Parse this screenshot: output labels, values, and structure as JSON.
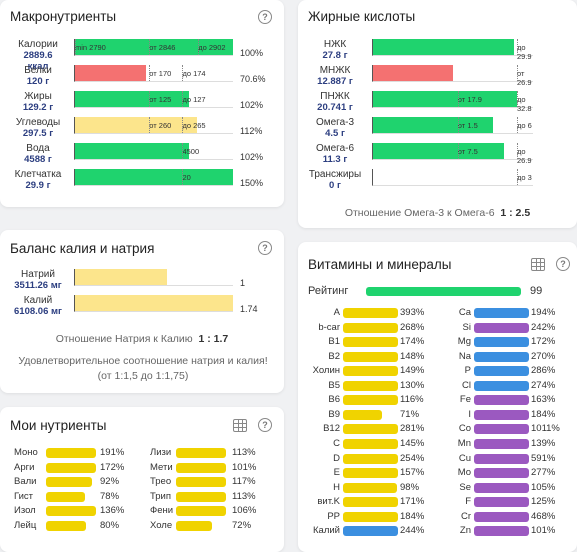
{
  "macro": {
    "title": "Макронутриенты",
    "rows": [
      {
        "name": "Калории",
        "val": "2889.6",
        "unit": "ккал",
        "pct": "100%",
        "fill": 1.0,
        "color": "green",
        "marks": [
          {
            "t": "min 2790",
            "p": 0.0
          },
          {
            "t": "от 2846",
            "p": 0.47
          },
          {
            "t": "до 2902",
            "p": 0.78
          }
        ]
      },
      {
        "name": "Белки",
        "val": "120 г",
        "pct": "70.6%",
        "fill": 0.45,
        "color": "red",
        "marks": [
          {
            "t": "от 170",
            "p": 0.47
          },
          {
            "t": "до 174",
            "p": 0.68
          }
        ]
      },
      {
        "name": "Жиры",
        "val": "129.2 г",
        "pct": "102%",
        "fill": 0.72,
        "color": "green",
        "marks": [
          {
            "t": "от 125",
            "p": 0.47
          },
          {
            "t": "до 127",
            "p": 0.68
          }
        ]
      },
      {
        "name": "Углеводы",
        "val": "297.5 г",
        "pct": "112%",
        "fill": 0.77,
        "color": "yellow",
        "marks": [
          {
            "t": "от 260",
            "p": 0.47
          },
          {
            "t": "до 265",
            "p": 0.68
          }
        ]
      },
      {
        "name": "Вода",
        "val": "4588 г",
        "pct": "102%",
        "fill": 0.72,
        "color": "green",
        "marks": [
          {
            "t": "4500",
            "p": 0.68
          }
        ]
      },
      {
        "name": "Клетчатка",
        "val": "29.9 г",
        "pct": "150%",
        "fill": 1.0,
        "color": "green",
        "marks": [
          {
            "t": "20",
            "p": 0.68
          }
        ]
      }
    ]
  },
  "fatty": {
    "title": "Жирные кислоты",
    "rows": [
      {
        "name": "НЖК",
        "val": "27.8 г",
        "fill": 0.88,
        "color": "green",
        "marks": [
          {
            "t": "до 29.9",
            "p": 0.9
          }
        ]
      },
      {
        "name": "МНЖК",
        "val": "12.887 г",
        "fill": 0.5,
        "color": "red",
        "marks": [
          {
            "t": "от 26.9",
            "p": 0.9
          }
        ]
      },
      {
        "name": "ПНЖК",
        "val": "20.741 г",
        "fill": 0.9,
        "color": "green",
        "marks": [
          {
            "t": "от 17.9",
            "p": 0.53
          },
          {
            "t": "до 32.8",
            "p": 0.9
          }
        ]
      },
      {
        "name": "Омега-3",
        "val": "4.5 г",
        "fill": 0.75,
        "color": "green",
        "marks": [
          {
            "t": "от 1.5",
            "p": 0.53
          },
          {
            "t": "до 6",
            "p": 0.9
          }
        ]
      },
      {
        "name": "Омега-6",
        "val": "11.3 г",
        "fill": 0.82,
        "color": "green",
        "marks": [
          {
            "t": "от 7.5",
            "p": 0.53
          },
          {
            "t": "до 26.9",
            "p": 0.9
          }
        ]
      },
      {
        "name": "Трансжиры",
        "val": "0 г",
        "fill": 0,
        "color": "green",
        "marks": [
          {
            "t": "до 3",
            "p": 0.9
          }
        ]
      }
    ],
    "ratio_label": "Отношение Омега-3 к Омега-6",
    "ratio_value": "1 : 2.5"
  },
  "balance": {
    "title": "Баланс калия и натрия",
    "rows": [
      {
        "name": "Натрий",
        "val": "3511.26 мг",
        "fill": 0.58,
        "num": "1"
      },
      {
        "name": "Калий",
        "val": "6108.06 мг",
        "fill": 1.0,
        "num": "1.74"
      }
    ],
    "ratio_label": "Отношение Натрия к Калию",
    "ratio_value": "1 : 1.7",
    "note": "Удовлетворительное соотношение натрия и калия! (от 1:1,5 до 1:1,75)"
  },
  "mine": {
    "title": "Мои нутриенты",
    "left": [
      {
        "name": "Моно",
        "pct": "191%",
        "fill": 1.0
      },
      {
        "name": "Арги",
        "pct": "172%",
        "fill": 1.0
      },
      {
        "name": "Вали",
        "pct": "92%",
        "fill": 0.92
      },
      {
        "name": "Гист",
        "pct": "78%",
        "fill": 0.78
      },
      {
        "name": "Изол",
        "pct": "136%",
        "fill": 1.0
      },
      {
        "name": "Лейц",
        "pct": "80%",
        "fill": 0.8
      }
    ],
    "right": [
      {
        "name": "Лизи",
        "pct": "113%",
        "fill": 1.0
      },
      {
        "name": "Мети",
        "pct": "101%",
        "fill": 1.0
      },
      {
        "name": "Трео",
        "pct": "117%",
        "fill": 1.0
      },
      {
        "name": "Трип",
        "pct": "113%",
        "fill": 1.0
      },
      {
        "name": "Фени",
        "pct": "106%",
        "fill": 1.0
      },
      {
        "name": "Холе",
        "pct": "72%",
        "fill": 0.72
      }
    ]
  },
  "vitamins": {
    "title": "Витамины и минералы",
    "rating_label": "Рейтинг",
    "rating_value": "99",
    "rating_fill": 0.99,
    "left": [
      {
        "name": "A",
        "pct": "393%",
        "fill": 1.0,
        "color": "gold"
      },
      {
        "name": "b-car",
        "pct": "268%",
        "fill": 1.0,
        "color": "gold"
      },
      {
        "name": "B1",
        "pct": "174%",
        "fill": 1.0,
        "color": "gold"
      },
      {
        "name": "B2",
        "pct": "148%",
        "fill": 1.0,
        "color": "gold"
      },
      {
        "name": "Холин",
        "pct": "149%",
        "fill": 1.0,
        "color": "gold"
      },
      {
        "name": "B5",
        "pct": "130%",
        "fill": 1.0,
        "color": "gold"
      },
      {
        "name": "B6",
        "pct": "116%",
        "fill": 1.0,
        "color": "gold"
      },
      {
        "name": "B9",
        "pct": "71%",
        "fill": 0.71,
        "color": "gold"
      },
      {
        "name": "B12",
        "pct": "281%",
        "fill": 1.0,
        "color": "gold"
      },
      {
        "name": "C",
        "pct": "145%",
        "fill": 1.0,
        "color": "gold"
      },
      {
        "name": "D",
        "pct": "254%",
        "fill": 1.0,
        "color": "gold"
      },
      {
        "name": "E",
        "pct": "157%",
        "fill": 1.0,
        "color": "gold"
      },
      {
        "name": "H",
        "pct": "98%",
        "fill": 0.98,
        "color": "gold"
      },
      {
        "name": "вит.K",
        "pct": "171%",
        "fill": 1.0,
        "color": "gold"
      },
      {
        "name": "PP",
        "pct": "184%",
        "fill": 1.0,
        "color": "gold"
      },
      {
        "name": "Калий",
        "pct": "244%",
        "fill": 1.0,
        "color": "blue"
      }
    ],
    "right": [
      {
        "name": "Ca",
        "pct": "194%",
        "fill": 1.0,
        "color": "blue"
      },
      {
        "name": "Si",
        "pct": "242%",
        "fill": 1.0,
        "color": "purple"
      },
      {
        "name": "Mg",
        "pct": "172%",
        "fill": 1.0,
        "color": "blue"
      },
      {
        "name": "Na",
        "pct": "270%",
        "fill": 1.0,
        "color": "blue"
      },
      {
        "name": "P",
        "pct": "286%",
        "fill": 1.0,
        "color": "blue"
      },
      {
        "name": "Cl",
        "pct": "274%",
        "fill": 1.0,
        "color": "blue"
      },
      {
        "name": "Fe",
        "pct": "163%",
        "fill": 1.0,
        "color": "purple"
      },
      {
        "name": "I",
        "pct": "184%",
        "fill": 1.0,
        "color": "purple"
      },
      {
        "name": "Co",
        "pct": "1011%",
        "fill": 1.0,
        "color": "purple"
      },
      {
        "name": "Mn",
        "pct": "139%",
        "fill": 1.0,
        "color": "purple"
      },
      {
        "name": "Cu",
        "pct": "591%",
        "fill": 1.0,
        "color": "purple"
      },
      {
        "name": "Mo",
        "pct": "277%",
        "fill": 1.0,
        "color": "purple"
      },
      {
        "name": "Se",
        "pct": "105%",
        "fill": 1.0,
        "color": "purple"
      },
      {
        "name": "F",
        "pct": "125%",
        "fill": 1.0,
        "color": "purple"
      },
      {
        "name": "Cr",
        "pct": "468%",
        "fill": 1.0,
        "color": "purple"
      },
      {
        "name": "Zn",
        "pct": "101%",
        "fill": 1.0,
        "color": "purple"
      }
    ]
  },
  "icons": {
    "help": "help-circle-icon",
    "table": "table-icon"
  },
  "help_glyph": "?"
}
